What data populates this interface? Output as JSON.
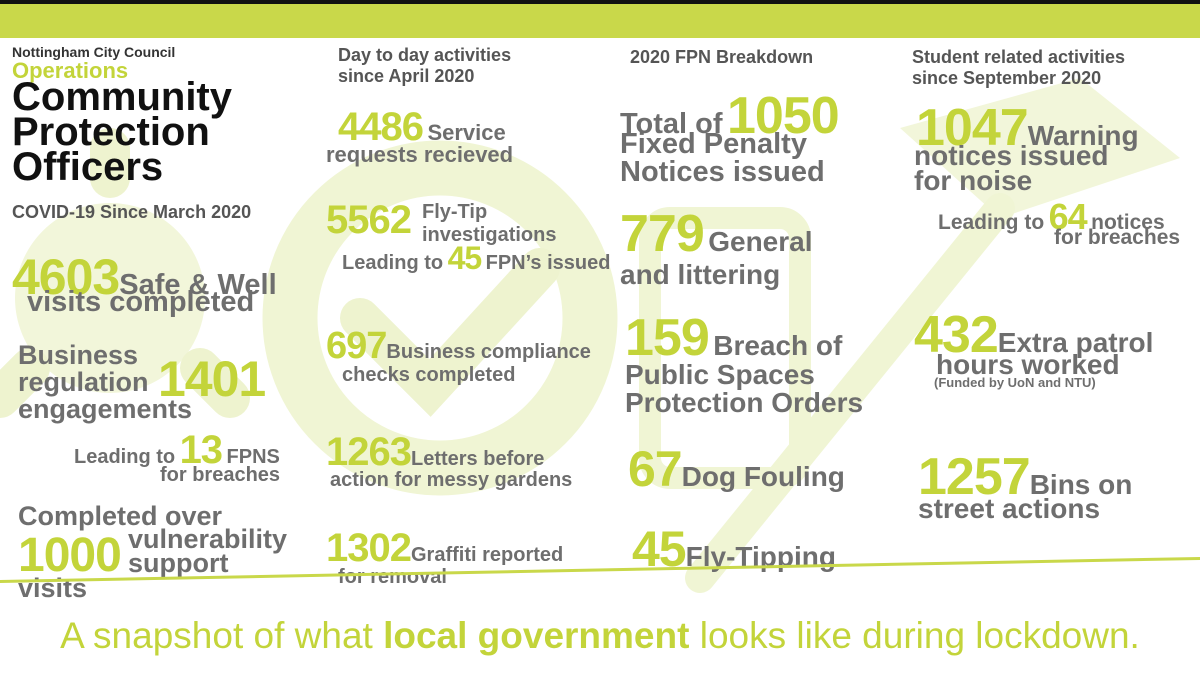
{
  "colors": {
    "accent": "#c9d84a",
    "number": "#c3d43a",
    "text": "#6e6e6e",
    "background": "#ffffff",
    "bar": "#c9d84a"
  },
  "header": {
    "council": "Nottingham City Council",
    "department": "Operations",
    "title_line1": "Community",
    "title_line2": "Protection",
    "title_line3": "Officers"
  },
  "col1": {
    "heading": "COVID-19 Since March 2020",
    "safe_well": {
      "number": "4603",
      "text1": "Safe & Well",
      "text2": "visits completed"
    },
    "business": {
      "text1": "Business",
      "text2": "regulation",
      "number": "1401",
      "text3": "engagements"
    },
    "fpns": {
      "text1": "Leading to",
      "number": "13",
      "text2": "FPNS",
      "text3": "for breaches"
    },
    "vulnerability": {
      "text1": "Completed over",
      "number": "1000",
      "text2": "vulnerability",
      "text3": "support",
      "text4": "visits"
    }
  },
  "col2": {
    "heading_line1": "Day to day activities",
    "heading_line2": "since April 2020",
    "service": {
      "number": "4486",
      "text1": "Service",
      "text2": "requests recieved"
    },
    "flytip": {
      "number": "5562",
      "text1": "Fly-Tip",
      "text2": "investigations",
      "text3": "Leading to",
      "number2": "45",
      "text4": "FPN’s issued"
    },
    "compliance": {
      "number": "697",
      "text1": "Business compliance",
      "text2": "checks completed"
    },
    "letters": {
      "number": "1263",
      "text1": "Letters before",
      "text2": "action for messy gardens"
    },
    "graffiti": {
      "number": "1302",
      "text1": "Graffiti reported",
      "text2": "for removal"
    }
  },
  "col3": {
    "heading": "2020 FPN Breakdown",
    "total": {
      "text1": "Total of",
      "number": "1050",
      "text2": "Fixed Penalty",
      "text3": "Notices issued"
    },
    "general": {
      "number": "779",
      "text1": "General",
      "text2": "and littering"
    },
    "breach": {
      "number": "159",
      "text1": "Breach of",
      "text2": "Public Spaces",
      "text3": "Protection Orders"
    },
    "dog": {
      "number": "67",
      "text1": "Dog Fouling"
    },
    "flytipping": {
      "number": "45",
      "text1": "Fly-Tipping"
    }
  },
  "col4": {
    "heading_line1": "Student related activities",
    "heading_line2": "since September 2020",
    "warning": {
      "number": "1047",
      "text1": "Warning",
      "text2": "notices issued",
      "text3": "for noise"
    },
    "breaches": {
      "text1": "Leading to",
      "number": "64",
      "text2": "notices",
      "text3": "for breaches"
    },
    "patrol": {
      "number": "432",
      "text1": "Extra patrol",
      "text2": "hours worked",
      "text3": "(Funded by UoN and NTU)"
    },
    "bins": {
      "number": "1257",
      "text1": "Bins on",
      "text2": "street actions"
    }
  },
  "footer": {
    "text1": "A snapshot of what ",
    "bold": "local government",
    "text2": " looks like during lockdown."
  }
}
